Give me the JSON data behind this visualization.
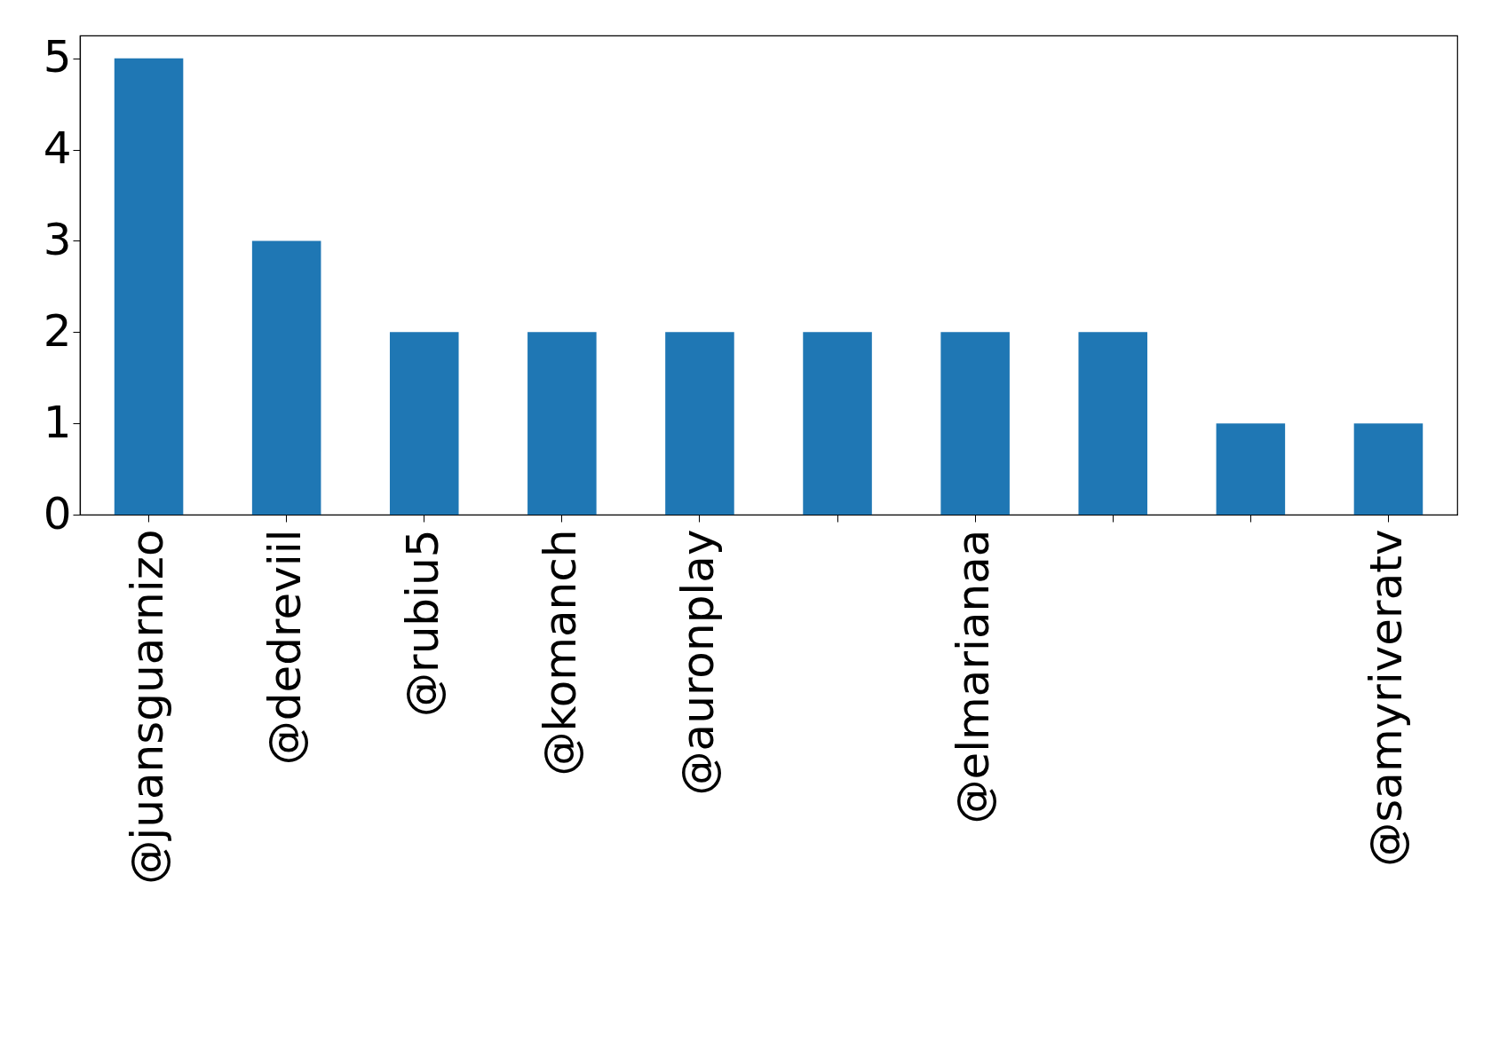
{
  "chart_data": {
    "type": "bar",
    "categories": [
      "@juansguarnizo",
      "@dedreviil",
      "@rubiu5",
      "@komanch",
      "@auronplay",
      null,
      "@elmarianaa",
      null,
      null,
      "@samyriveratv"
    ],
    "values": [
      5,
      3,
      2,
      2,
      2,
      2,
      2,
      2,
      1,
      1
    ],
    "color": "#1f77b4",
    "ylim": [
      0,
      5.25
    ],
    "yticks": [
      0,
      1,
      2,
      3,
      4,
      5
    ],
    "grid": false
  }
}
